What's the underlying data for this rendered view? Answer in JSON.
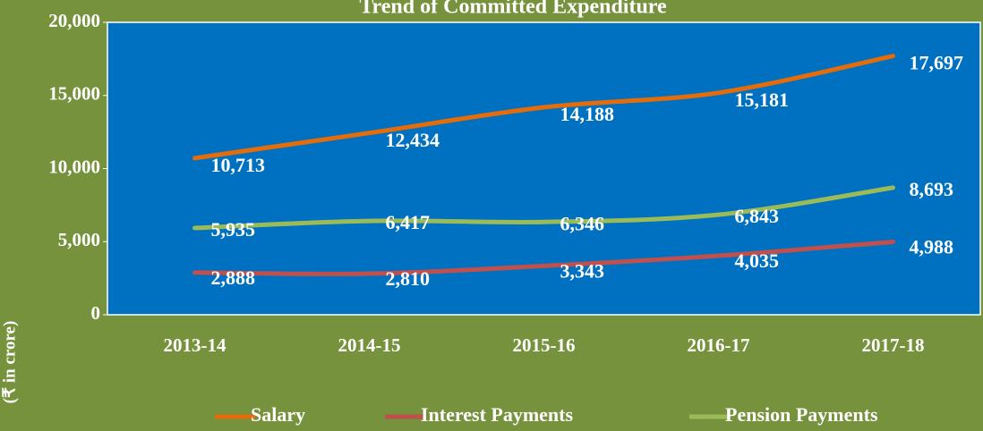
{
  "chart_data": {
    "type": "line",
    "title": "Trend of Committed Expenditure",
    "y_label": "(₹ in crore)",
    "categories": [
      "2013-14",
      "2014-15",
      "2015-16",
      "2016-17",
      "2017-18"
    ],
    "series": [
      {
        "name": "Salary",
        "color": "#e46c0a",
        "values": [
          10713,
          12434,
          14188,
          15181,
          17697
        ],
        "value_labels": [
          "10,713",
          "12,434",
          "14,188",
          "15,181",
          "17,697"
        ]
      },
      {
        "name": "Interest Payments",
        "color": "#c0504d",
        "values": [
          2888,
          2810,
          3343,
          4035,
          4988
        ],
        "value_labels": [
          "2,888",
          "2,810",
          "3,343",
          "4,035",
          "4,988"
        ]
      },
      {
        "name": "Pension Payments",
        "color": "#9bbb59",
        "values": [
          5935,
          6417,
          6346,
          6843,
          8693
        ],
        "value_labels": [
          "5,935",
          "6,417",
          "6,346",
          "6,843",
          "8,693"
        ]
      }
    ],
    "ylim": [
      0,
      20000
    ],
    "yticks": [
      0,
      {
        "value": 5000,
        "label": "5,000"
      },
      {
        "value": 10000,
        "label": "10,000"
      },
      {
        "value": 15000,
        "label": "15,000"
      },
      {
        "value": 20000,
        "label": "20,000"
      }
    ],
    "legend": "bottom"
  }
}
